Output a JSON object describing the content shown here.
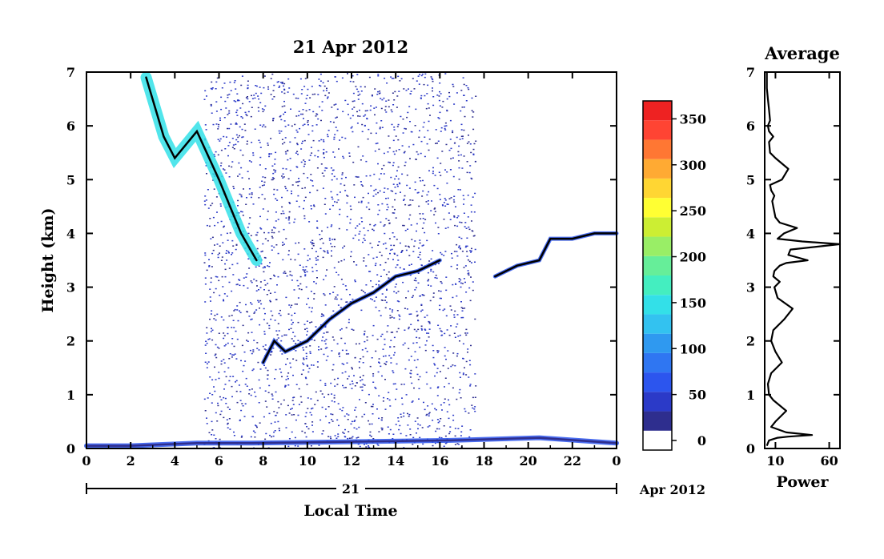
{
  "chart_data": [
    {
      "type": "heatmap",
      "title": "21 Apr 2012",
      "xlabel": "Local Time",
      "ylabel": "Height (km)",
      "xlim": [
        0,
        24
      ],
      "ylim": [
        0,
        7
      ],
      "x_ticks": [
        "0",
        "2",
        "4",
        "6",
        "8",
        "10",
        "12",
        "14",
        "16",
        "18",
        "20",
        "22",
        "0"
      ],
      "y_ticks": [
        "0",
        "1",
        "2",
        "3",
        "4",
        "5",
        "6",
        "7"
      ],
      "day_label": "21",
      "month_label": "Apr 2012",
      "grid": false,
      "colorbar": {
        "ticks": [
          "0",
          "50",
          "100",
          "150",
          "200",
          "250",
          "300",
          "350"
        ],
        "range": [
          0,
          380
        ],
        "colors": [
          "#ffffff",
          "#2e2e8e",
          "#2b3ac8",
          "#2c55ee",
          "#2f76f2",
          "#2f99f0",
          "#33c2f0",
          "#33e0e8",
          "#44eec0",
          "#66ee99",
          "#99ee66",
          "#ccee33",
          "#ffff33",
          "#ffd633",
          "#ffaa33",
          "#ff7733",
          "#ff4433",
          "#ee2222"
        ]
      },
      "layers": [
        {
          "name": "surface-layer",
          "points": [
            [
              0.0,
              0.05
            ],
            [
              2.0,
              0.05
            ],
            [
              5.0,
              0.1
            ],
            [
              7.5,
              0.1
            ],
            [
              16.5,
              0.15
            ],
            [
              20.5,
              0.2
            ],
            [
              24.0,
              0.1
            ]
          ]
        },
        {
          "name": "rising-layer",
          "points": [
            [
              8.0,
              1.6
            ],
            [
              8.5,
              2.0
            ],
            [
              9.0,
              1.8
            ],
            [
              10.0,
              2.0
            ],
            [
              11.0,
              2.4
            ],
            [
              12.0,
              2.7
            ],
            [
              13.0,
              2.9
            ],
            [
              14.0,
              3.2
            ],
            [
              15.0,
              3.3
            ],
            [
              16.0,
              3.5
            ]
          ]
        },
        {
          "name": "evening-layer",
          "points": [
            [
              18.5,
              3.2
            ],
            [
              19.5,
              3.4
            ],
            [
              20.5,
              3.5
            ],
            [
              21.0,
              3.9
            ],
            [
              22.0,
              3.9
            ],
            [
              23.0,
              4.0
            ],
            [
              24.0,
              4.0
            ]
          ]
        },
        {
          "name": "high-cloud",
          "points": [
            [
              2.7,
              6.9
            ],
            [
              3.5,
              5.8
            ],
            [
              4.0,
              5.4
            ],
            [
              5.0,
              5.9
            ],
            [
              6.0,
              5.0
            ],
            [
              7.0,
              4.0
            ],
            [
              7.7,
              3.5
            ]
          ]
        }
      ]
    },
    {
      "type": "line",
      "title": "Average",
      "xlabel": "Power",
      "x_ticks": [
        "10",
        "60"
      ],
      "y_ticks": [
        "0",
        "1",
        "2",
        "3",
        "4",
        "5",
        "6",
        "7"
      ],
      "xlim": [
        0,
        70
      ],
      "ylim": [
        0,
        7
      ],
      "series": [
        {
          "x": [
            2,
            3,
            4,
            12,
            22,
            44,
            20,
            6,
            10,
            20,
            8,
            4,
            3,
            6,
            16,
            10,
            6,
            8,
            18,
            26,
            12,
            9,
            14,
            8,
            9,
            14,
            20,
            40,
            22,
            24,
            70,
            35,
            12,
            18,
            30,
            14,
            10,
            8,
            7,
            9,
            6,
            5,
            16,
            22,
            10,
            5,
            4,
            8,
            4,
            3,
            5,
            4,
            3,
            2,
            2
          ],
          "y": [
            0.05,
            0.1,
            0.15,
            0.2,
            0.22,
            0.25,
            0.3,
            0.4,
            0.5,
            0.7,
            0.9,
            1.0,
            1.2,
            1.4,
            1.6,
            1.8,
            2.0,
            2.2,
            2.4,
            2.6,
            2.8,
            3.0,
            3.1,
            3.2,
            3.3,
            3.4,
            3.45,
            3.5,
            3.6,
            3.7,
            3.8,
            3.85,
            3.9,
            4.0,
            4.1,
            4.2,
            4.3,
            4.5,
            4.6,
            4.7,
            4.8,
            4.9,
            5.0,
            5.2,
            5.4,
            5.5,
            5.7,
            5.8,
            5.9,
            6.0,
            6.1,
            6.3,
            6.5,
            6.7,
            7.0
          ]
        }
      ]
    }
  ]
}
